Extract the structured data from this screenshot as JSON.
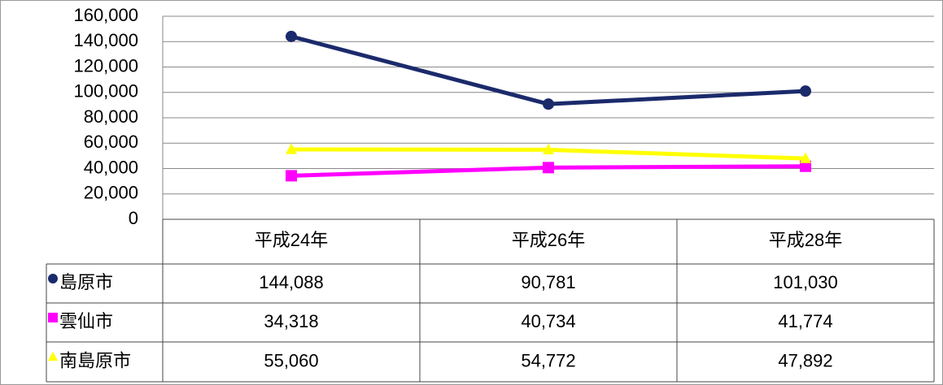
{
  "chart_data": {
    "type": "line",
    "categories": [
      "平成24年",
      "平成26年",
      "平成28年"
    ],
    "series": [
      {
        "name": "島原市",
        "color": "#1b2a6b",
        "marker": "circle",
        "values": [
          144088,
          90781,
          101030
        ],
        "value_labels": [
          "144,088",
          "90,781",
          "101,030"
        ]
      },
      {
        "name": "雲仙市",
        "color": "#ff00ff",
        "marker": "square",
        "values": [
          34318,
          40734,
          41774
        ],
        "value_labels": [
          "34,318",
          "40,734",
          "41,774"
        ]
      },
      {
        "name": "南島原市",
        "color": "#ffff00",
        "marker": "triangle",
        "values": [
          55060,
          54772,
          47892
        ],
        "value_labels": [
          "55,060",
          "54,772",
          "47,892"
        ]
      }
    ],
    "ylim": [
      0,
      160000
    ],
    "yticks": [
      0,
      {
        "value": 20000,
        "label": "20,000"
      },
      {
        "value": 40000,
        "label": "40,000"
      },
      {
        "value": 60000,
        "label": "60,000"
      },
      {
        "value": 80000,
        "label": "80,000"
      },
      {
        "value": 100000,
        "label": "100,000"
      },
      {
        "value": 120000,
        "label": "120,000"
      },
      {
        "value": 140000,
        "label": "140,000"
      },
      {
        "value": 160000,
        "label": "160,000"
      }
    ],
    "grid": true,
    "data_table": true
  }
}
